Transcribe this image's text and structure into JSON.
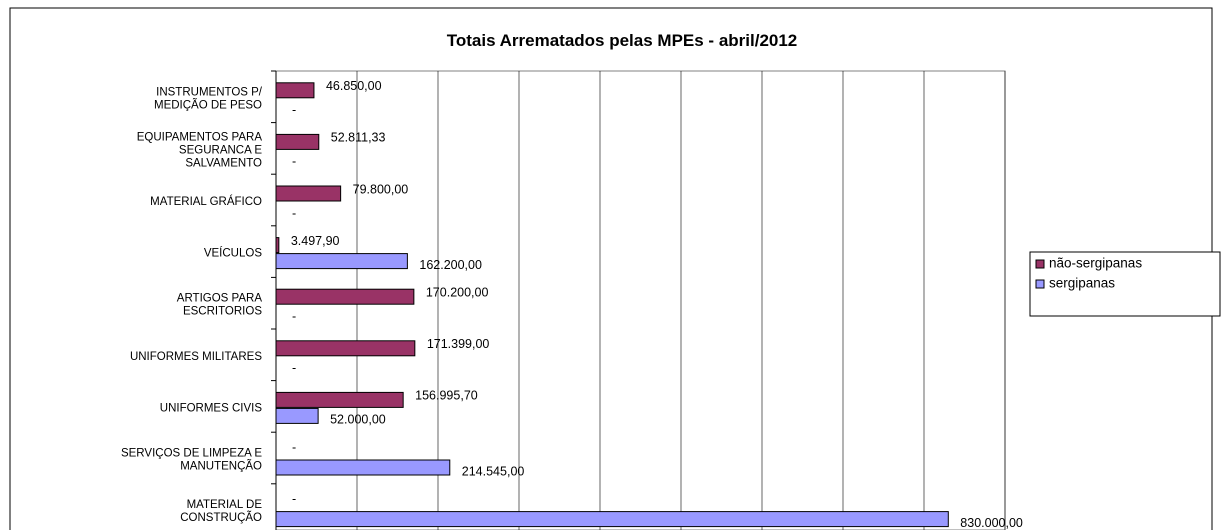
{
  "chart_data": {
    "type": "hbar",
    "title": "Totais Arrematados pelas MPEs - abril/2012",
    "categories": [
      "INSTRUMENTOS P/\nMEDIÇÃO DE PESO",
      "EQUIPAMENTOS PARA\nSEGURANCA E\nSALVAMENTO",
      "MATERIAL GRÁFICO",
      "VEÍCULOS",
      "ARTIGOS PARA\nESCRITORIOS",
      "UNIFORMES MILITARES",
      "UNIFORMES CIVIS",
      "SERVIÇOS DE LIMPEZA E\nMANUTENÇÃO",
      "MATERIAL DE\nCONSTRUÇÃO"
    ],
    "series": [
      {
        "name": "não-sergipanas",
        "color": "#993366",
        "values": [
          46850,
          52811.33,
          79800,
          3497.9,
          170200,
          171399,
          156995.7,
          null,
          null
        ],
        "value_labels": [
          "46.850,00",
          "52.811,33",
          "79.800,00",
          "3.497,90",
          "170.200,00",
          "171.399,00",
          "156.995,70",
          "-",
          "-"
        ]
      },
      {
        "name": "sergipanas",
        "color": "#9999ff",
        "values": [
          null,
          null,
          null,
          162200,
          null,
          null,
          52000,
          214545,
          830000
        ],
        "value_labels": [
          "-",
          "-",
          "-",
          "162.200,00",
          "-",
          "-",
          "52.000,00",
          "214.545,00",
          "830.000,00"
        ]
      }
    ],
    "xlim": [
      0,
      900000
    ],
    "xticks": [
      0,
      100000,
      200000,
      300000,
      400000,
      500000,
      600000,
      700000,
      800000,
      900000
    ],
    "grid": true,
    "legend": "right"
  }
}
